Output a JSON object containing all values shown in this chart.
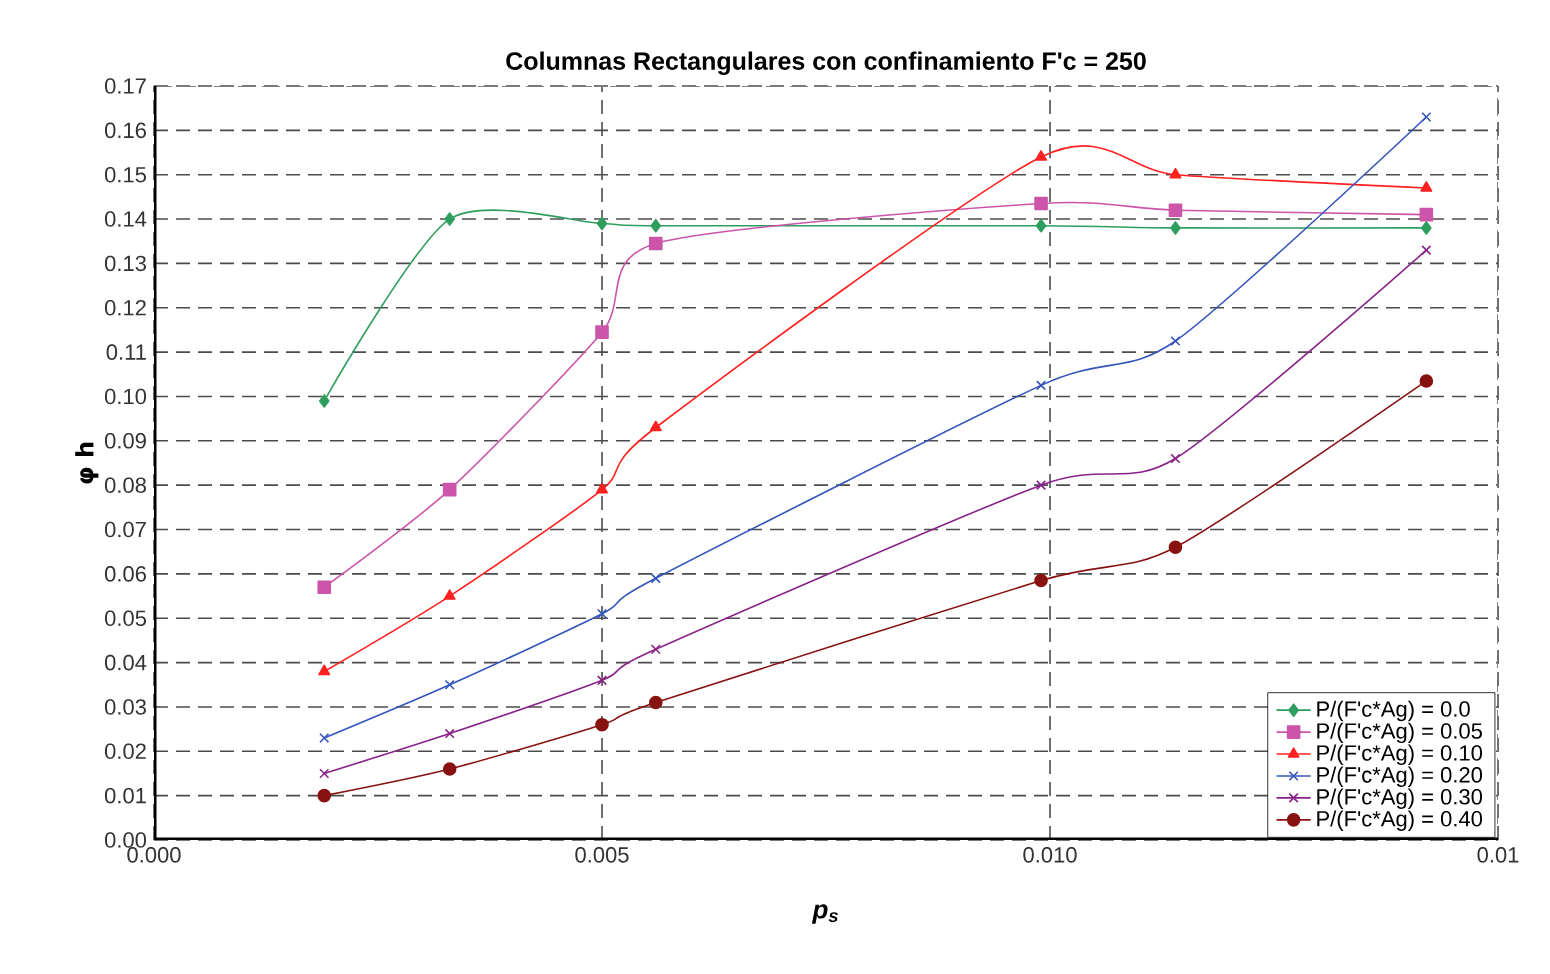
{
  "chart_data": {
    "type": "line",
    "title": "Columnas Rectangulares con confinamiento F'c = 250",
    "xlabel": "p$_{s}$",
    "ylabel": "φ h",
    "x": [
      0.0019,
      0.0033,
      0.005,
      0.0056,
      0.0099,
      0.0114,
      0.0142
    ],
    "series": [
      {
        "name": "P/(F'c*Ag) = 0.0",
        "color": "#2e9e5e",
        "marker": "diamond",
        "values": [
          0.099,
          0.14,
          0.139,
          0.1385,
          0.1385,
          0.138,
          0.138
        ]
      },
      {
        "name": "P/(F'c*Ag) = 0.05",
        "color": "#cc55aa",
        "marker": "square",
        "values": [
          0.057,
          0.079,
          0.1145,
          0.1345,
          0.1435,
          0.142,
          0.141
        ]
      },
      {
        "name": "P/(F'c*Ag) = 0.10",
        "color": "#ff2020",
        "marker": "triangle",
        "values": [
          0.038,
          0.055,
          0.079,
          0.093,
          0.154,
          0.15,
          0.147
        ]
      },
      {
        "name": "P/(F'c*Ag) = 0.20",
        "color": "#3355bb",
        "marker": "cross",
        "values": [
          0.023,
          0.035,
          0.051,
          0.059,
          0.1025,
          0.1125,
          0.163
        ]
      },
      {
        "name": "P/(F'c*Ag) = 0.30",
        "color": "#882288",
        "marker": "cross",
        "values": [
          0.015,
          0.024,
          0.036,
          0.043,
          0.08,
          0.086,
          0.133
        ]
      },
      {
        "name": "P/(F'c*Ag) = 0.40",
        "color": "#881111",
        "marker": "circle",
        "values": [
          0.01,
          0.016,
          0.026,
          0.031,
          0.0585,
          0.066,
          0.1035
        ]
      }
    ],
    "xlim": [
      0,
      0.015
    ],
    "xticks": [
      {
        "value": 0,
        "label": "0.000"
      },
      {
        "value": 0.005,
        "label": "0.005"
      },
      {
        "value": 0.01,
        "label": "0.010"
      },
      {
        "value": 0.015,
        "label": "0.01"
      }
    ],
    "ylim": [
      0,
      0.17
    ],
    "yticks": [
      {
        "value": 0,
        "label": "0.00"
      },
      {
        "value": 0.01,
        "label": "0.01"
      },
      {
        "value": 0.02,
        "label": "0.02"
      },
      {
        "value": 0.03,
        "label": "0.03"
      },
      {
        "value": 0.04,
        "label": "0.04"
      },
      {
        "value": 0.05,
        "label": "0.05"
      },
      {
        "value": 0.06,
        "label": "0.06"
      },
      {
        "value": 0.07,
        "label": "0.07"
      },
      {
        "value": 0.08,
        "label": "0.08"
      },
      {
        "value": 0.09,
        "label": "0.09"
      },
      {
        "value": 0.1,
        "label": "0.10"
      },
      {
        "value": 0.11,
        "label": "0.11"
      },
      {
        "value": 0.12,
        "label": "0.12"
      },
      {
        "value": 0.13,
        "label": "0.13"
      },
      {
        "value": 0.14,
        "label": "0.14"
      },
      {
        "value": 0.15,
        "label": "0.15"
      },
      {
        "value": 0.16,
        "label": "0.16"
      },
      {
        "value": 0.17,
        "label": "0.17"
      }
    ],
    "grid": true,
    "legend": "bottom right",
    "line_style": "solid"
  }
}
